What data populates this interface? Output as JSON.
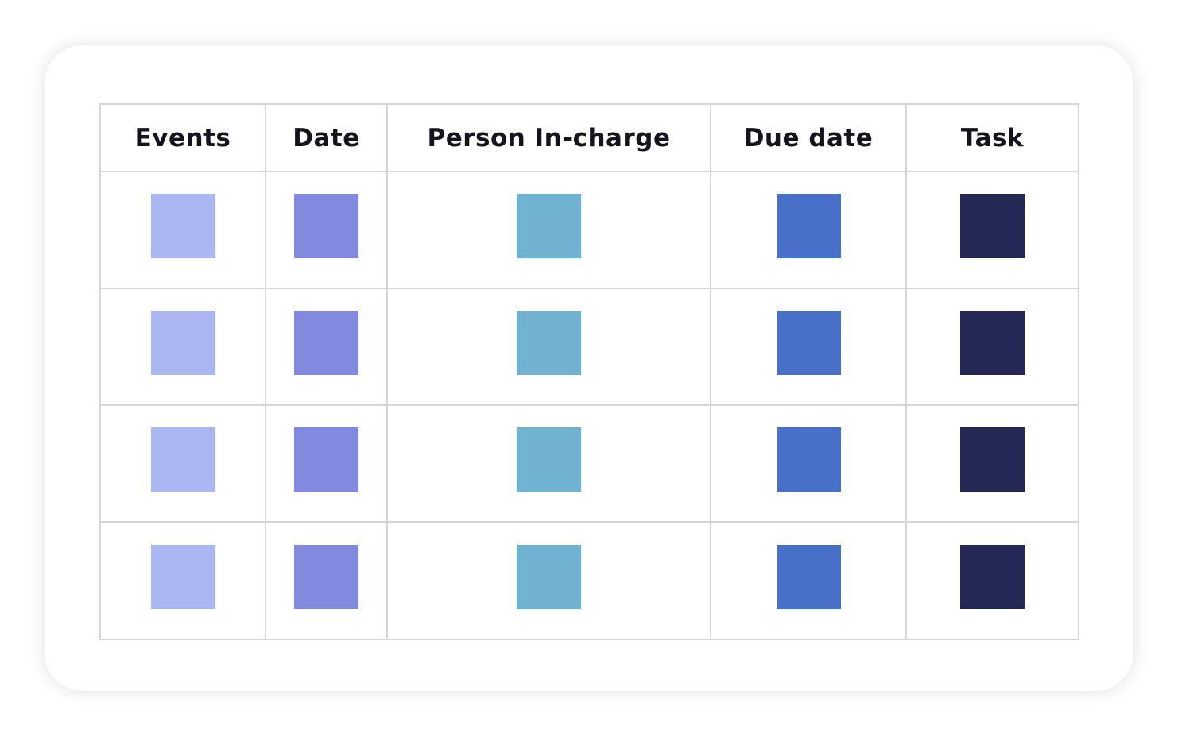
{
  "table": {
    "headers": [
      "Events",
      "Date",
      "Person In-charge",
      "Due date",
      "Task"
    ],
    "column_colors": [
      "#abb7f0",
      "#818adf",
      "#70b2d0",
      "#4870c8",
      "#242955"
    ],
    "row_count": 4
  }
}
